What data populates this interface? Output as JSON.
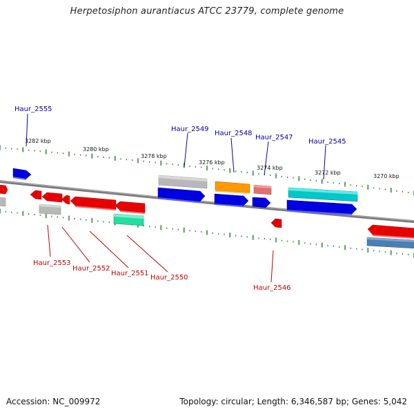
{
  "title": "Herpetosiphon aurantiacus ATCC 23779, complete genome",
  "footer": {
    "accession": "Accession: NC_009972",
    "summary": "Topology: circular; Length: 6,346,587 bp; Genes: 5,042"
  },
  "scale_labels": [
    "3282 kbp",
    "3280 kbp",
    "3278 kbp",
    "3276 kbp",
    "3274 kbp",
    "3272 kbp",
    "3270 kbp"
  ],
  "gene_labels_top": [
    "Haur_2555",
    "Haur_2549",
    "Haur_2548",
    "Haur_2547",
    "Haur_2545"
  ],
  "gene_labels_bottom": [
    "Haur_2553",
    "Haur_2552",
    "Haur_2551",
    "Haur_2550",
    "Haur_2546"
  ],
  "colors": {
    "top_label": "#00009c",
    "bottom_label": "#c00000",
    "tick": "#1a7a1a",
    "backbone": "#808080",
    "blue": "#0000e0",
    "red": "#e80000",
    "gray": "#b8b8b8",
    "orange": "#ff9900",
    "pink": "#e07070",
    "cyan": "#00c8c8",
    "green": "#20e0a0",
    "steel": "#4a7fb5"
  }
}
